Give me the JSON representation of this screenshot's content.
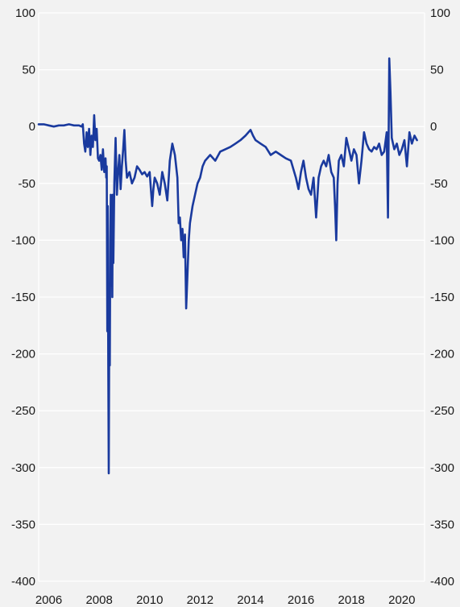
{
  "chart_data": {
    "type": "line",
    "title": "",
    "xlabel": "",
    "ylabel": "",
    "ylim": [
      -400,
      100
    ],
    "yticks": [
      100,
      50,
      0,
      -50,
      -100,
      -150,
      -200,
      -250,
      -300,
      -350,
      -400
    ],
    "ytick_labels": [
      "100",
      "50",
      "0",
      "-50",
      "-100",
      "-150",
      "-200",
      "-250",
      "-300",
      "-350",
      "-400"
    ],
    "xlim": [
      2005.6,
      2020.9
    ],
    "xticks": [
      2006,
      2008,
      2010,
      2012,
      2014,
      2016,
      2018,
      2020
    ],
    "xtick_labels": [
      "2006",
      "2008",
      "2010",
      "2012",
      "2014",
      "2016",
      "2018",
      "2020"
    ],
    "grid": true,
    "dual_y_axis": true,
    "legend": "none",
    "colors": {
      "background": "#f2f2f2",
      "grid": "#ffffff",
      "line": "#1a3a9e",
      "text": "#1a1a1a"
    },
    "series": [
      {
        "points": [
          [
            2005.6,
            2
          ],
          [
            2005.8,
            2
          ],
          [
            2006.0,
            1
          ],
          [
            2006.2,
            0
          ],
          [
            2006.4,
            1
          ],
          [
            2006.6,
            1
          ],
          [
            2006.8,
            2
          ],
          [
            2007.0,
            1
          ],
          [
            2007.2,
            1
          ],
          [
            2007.3,
            0
          ],
          [
            2007.35,
            2
          ],
          [
            2007.4,
            -15
          ],
          [
            2007.45,
            -22
          ],
          [
            2007.5,
            -5
          ],
          [
            2007.55,
            -18
          ],
          [
            2007.6,
            -2
          ],
          [
            2007.65,
            -25
          ],
          [
            2007.7,
            -8
          ],
          [
            2007.75,
            -18
          ],
          [
            2007.8,
            10
          ],
          [
            2007.85,
            -12
          ],
          [
            2007.9,
            -2
          ],
          [
            2007.95,
            -28
          ],
          [
            2008.0,
            -30
          ],
          [
            2008.05,
            -25
          ],
          [
            2008.1,
            -38
          ],
          [
            2008.15,
            -20
          ],
          [
            2008.2,
            -40
          ],
          [
            2008.25,
            -28
          ],
          [
            2008.28,
            -45
          ],
          [
            2008.3,
            -35
          ],
          [
            2008.32,
            -180
          ],
          [
            2008.34,
            -70
          ],
          [
            2008.36,
            -210
          ],
          [
            2008.38,
            -305
          ],
          [
            2008.4,
            -160
          ],
          [
            2008.42,
            -210
          ],
          [
            2008.44,
            -100
          ],
          [
            2008.46,
            -60
          ],
          [
            2008.48,
            -140
          ],
          [
            2008.5,
            -70
          ],
          [
            2008.52,
            -150
          ],
          [
            2008.54,
            -60
          ],
          [
            2008.56,
            -120
          ],
          [
            2008.6,
            -50
          ],
          [
            2008.65,
            -10
          ],
          [
            2008.7,
            -60
          ],
          [
            2008.75,
            -40
          ],
          [
            2008.8,
            -25
          ],
          [
            2008.85,
            -55
          ],
          [
            2008.9,
            -35
          ],
          [
            2008.95,
            -20
          ],
          [
            2009.0,
            -3
          ],
          [
            2009.05,
            -30
          ],
          [
            2009.1,
            -45
          ],
          [
            2009.2,
            -40
          ],
          [
            2009.3,
            -50
          ],
          [
            2009.4,
            -45
          ],
          [
            2009.5,
            -35
          ],
          [
            2009.6,
            -38
          ],
          [
            2009.7,
            -42
          ],
          [
            2009.8,
            -40
          ],
          [
            2009.9,
            -44
          ],
          [
            2010.0,
            -40
          ],
          [
            2010.05,
            -55
          ],
          [
            2010.1,
            -70
          ],
          [
            2010.15,
            -55
          ],
          [
            2010.2,
            -45
          ],
          [
            2010.3,
            -50
          ],
          [
            2010.4,
            -60
          ],
          [
            2010.5,
            -40
          ],
          [
            2010.6,
            -50
          ],
          [
            2010.7,
            -65
          ],
          [
            2010.8,
            -30
          ],
          [
            2010.9,
            -15
          ],
          [
            2011.0,
            -25
          ],
          [
            2011.1,
            -45
          ],
          [
            2011.15,
            -85
          ],
          [
            2011.2,
            -80
          ],
          [
            2011.25,
            -100
          ],
          [
            2011.3,
            -90
          ],
          [
            2011.35,
            -115
          ],
          [
            2011.4,
            -95
          ],
          [
            2011.45,
            -160
          ],
          [
            2011.5,
            -130
          ],
          [
            2011.55,
            -100
          ],
          [
            2011.6,
            -85
          ],
          [
            2011.7,
            -70
          ],
          [
            2011.8,
            -60
          ],
          [
            2011.9,
            -50
          ],
          [
            2012.0,
            -45
          ],
          [
            2012.1,
            -35
          ],
          [
            2012.2,
            -30
          ],
          [
            2012.4,
            -25
          ],
          [
            2012.6,
            -30
          ],
          [
            2012.8,
            -22
          ],
          [
            2013.0,
            -20
          ],
          [
            2013.2,
            -18
          ],
          [
            2013.4,
            -15
          ],
          [
            2013.6,
            -12
          ],
          [
            2013.8,
            -8
          ],
          [
            2014.0,
            -3
          ],
          [
            2014.1,
            -8
          ],
          [
            2014.2,
            -12
          ],
          [
            2014.4,
            -15
          ],
          [
            2014.6,
            -18
          ],
          [
            2014.8,
            -25
          ],
          [
            2015.0,
            -22
          ],
          [
            2015.2,
            -25
          ],
          [
            2015.4,
            -28
          ],
          [
            2015.6,
            -30
          ],
          [
            2015.8,
            -45
          ],
          [
            2015.9,
            -55
          ],
          [
            2016.0,
            -40
          ],
          [
            2016.1,
            -30
          ],
          [
            2016.2,
            -45
          ],
          [
            2016.3,
            -55
          ],
          [
            2016.4,
            -60
          ],
          [
            2016.5,
            -45
          ],
          [
            2016.6,
            -80
          ],
          [
            2016.7,
            -45
          ],
          [
            2016.8,
            -35
          ],
          [
            2016.9,
            -30
          ],
          [
            2017.0,
            -35
          ],
          [
            2017.1,
            -25
          ],
          [
            2017.2,
            -40
          ],
          [
            2017.3,
            -45
          ],
          [
            2017.35,
            -70
          ],
          [
            2017.4,
            -100
          ],
          [
            2017.45,
            -50
          ],
          [
            2017.5,
            -30
          ],
          [
            2017.6,
            -25
          ],
          [
            2017.7,
            -35
          ],
          [
            2017.8,
            -10
          ],
          [
            2017.9,
            -20
          ],
          [
            2018.0,
            -30
          ],
          [
            2018.1,
            -20
          ],
          [
            2018.2,
            -25
          ],
          [
            2018.3,
            -50
          ],
          [
            2018.4,
            -30
          ],
          [
            2018.5,
            -5
          ],
          [
            2018.6,
            -15
          ],
          [
            2018.7,
            -20
          ],
          [
            2018.8,
            -22
          ],
          [
            2018.9,
            -18
          ],
          [
            2019.0,
            -20
          ],
          [
            2019.1,
            -15
          ],
          [
            2019.2,
            -25
          ],
          [
            2019.3,
            -22
          ],
          [
            2019.4,
            -5
          ],
          [
            2019.45,
            -80
          ],
          [
            2019.5,
            60
          ],
          [
            2019.55,
            30
          ],
          [
            2019.6,
            -10
          ],
          [
            2019.7,
            -20
          ],
          [
            2019.8,
            -15
          ],
          [
            2019.9,
            -25
          ],
          [
            2020.0,
            -20
          ],
          [
            2020.1,
            -12
          ],
          [
            2020.2,
            -35
          ],
          [
            2020.3,
            -5
          ],
          [
            2020.4,
            -15
          ],
          [
            2020.5,
            -8
          ],
          [
            2020.6,
            -12
          ]
        ]
      }
    ]
  }
}
